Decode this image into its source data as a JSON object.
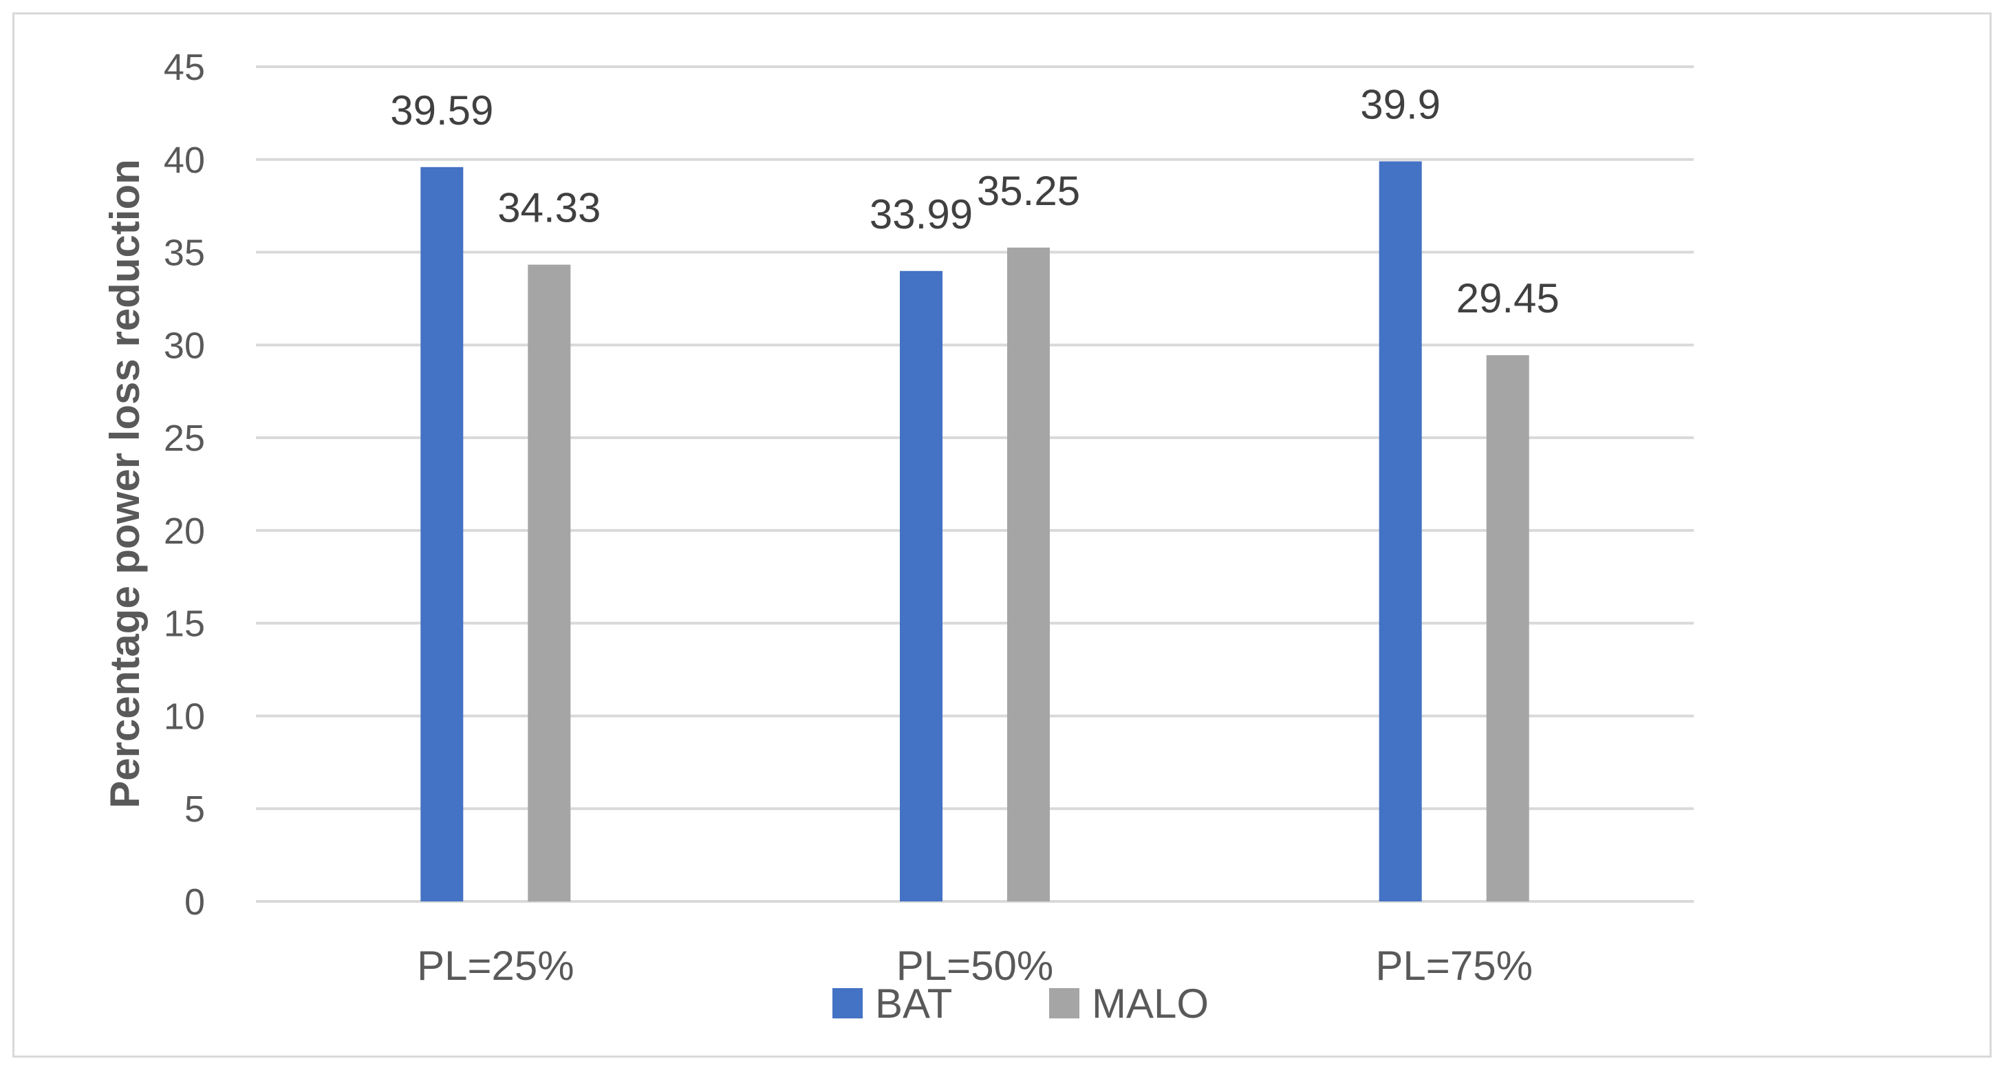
{
  "chart_data": {
    "type": "bar",
    "categories": [
      "PL=25%",
      "PL=50%",
      "PL=75%"
    ],
    "series": [
      {
        "name": "BAT",
        "values": [
          39.59,
          33.99,
          39.9
        ],
        "color": "#4472c4"
      },
      {
        "name": "MALO",
        "values": [
          34.33,
          35.25,
          29.45
        ],
        "color": "#a5a5a5"
      }
    ],
    "data_labels": [
      [
        "39.59",
        "33.99",
        "39.9"
      ],
      [
        "34.33",
        "35.25",
        "29.45"
      ]
    ],
    "title": "",
    "xlabel": "",
    "ylabel": "Percentage power loss reduction",
    "ylim": [
      0,
      45
    ],
    "yticks": [
      "0",
      "5",
      "10",
      "15",
      "20",
      "25",
      "30",
      "35",
      "40",
      "45"
    ],
    "grid": true,
    "legend_position": "bottom",
    "gridline_color": "#d9d9d9"
  }
}
